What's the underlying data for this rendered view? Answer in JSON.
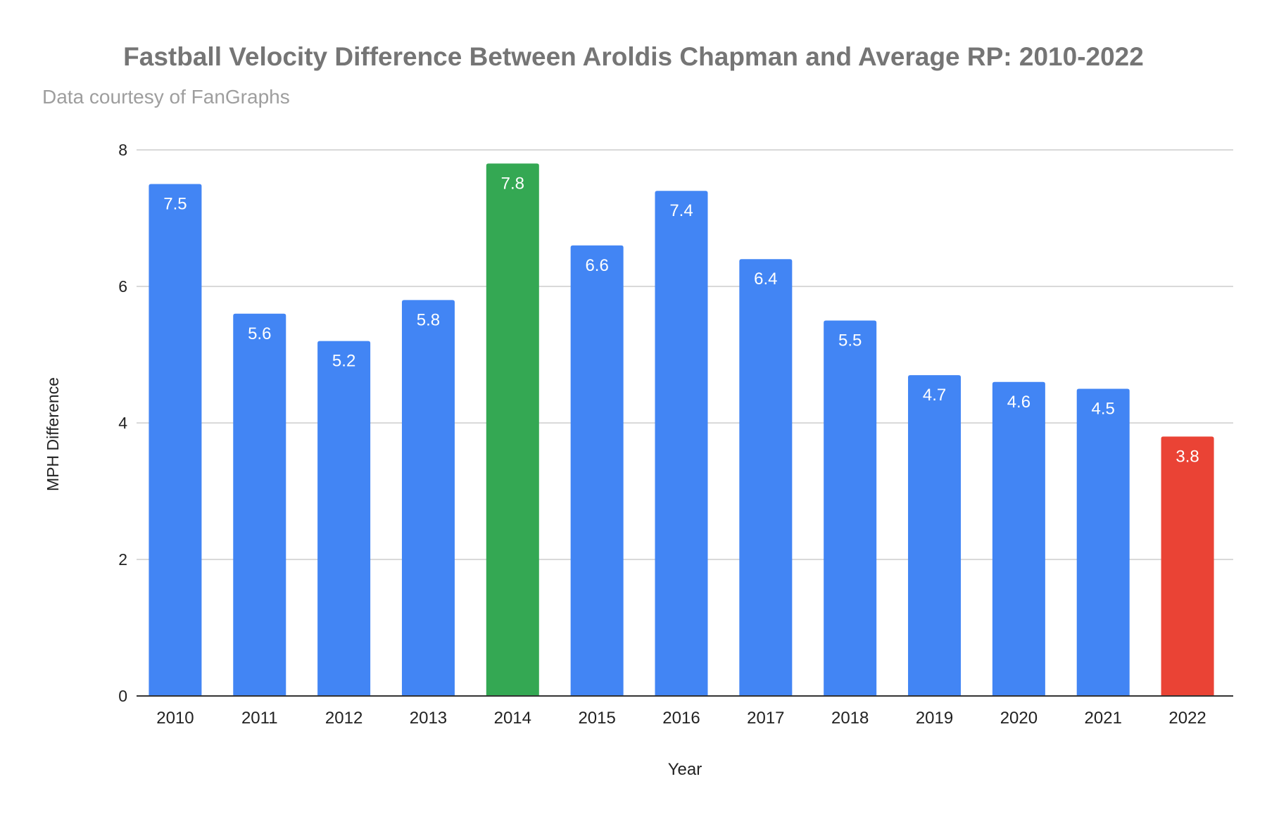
{
  "chart_data": {
    "type": "bar",
    "title": "Fastball Velocity Difference Between Aroldis Chapman and Average RP: 2010-2022",
    "subtitle": "Data courtesy of FanGraphs",
    "xlabel": "Year",
    "ylabel": "MPH Difference",
    "ylim": [
      0,
      8
    ],
    "yticks": [
      0,
      2,
      4,
      6,
      8
    ],
    "grid": true,
    "categories": [
      "2010",
      "2011",
      "2012",
      "2013",
      "2014",
      "2015",
      "2016",
      "2017",
      "2018",
      "2019",
      "2020",
      "2021",
      "2022"
    ],
    "values": [
      7.5,
      5.6,
      5.2,
      5.8,
      7.8,
      6.6,
      7.4,
      6.4,
      5.5,
      4.7,
      4.6,
      4.5,
      3.8
    ],
    "data_labels": [
      "7.5",
      "5.6",
      "5.2",
      "5.8",
      "7.8",
      "6.6",
      "7.4",
      "6.4",
      "5.5",
      "4.7",
      "4.6",
      "4.5",
      "3.8"
    ],
    "colors": [
      "#4285F4",
      "#4285F4",
      "#4285F4",
      "#4285F4",
      "#34A853",
      "#4285F4",
      "#4285F4",
      "#4285F4",
      "#4285F4",
      "#4285F4",
      "#4285F4",
      "#4285F4",
      "#EA4335"
    ]
  }
}
